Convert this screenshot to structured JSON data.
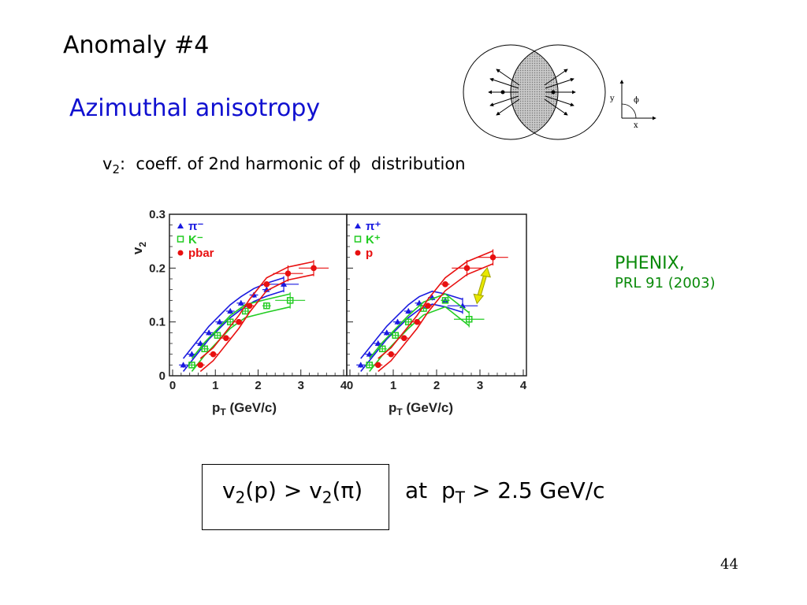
{
  "slide": {
    "title": "Anomaly #4",
    "subtitle": "Azimuthal anisotropy",
    "v2_def": {
      "v": "v",
      "sub": "2",
      "rest": ":  coeff. of 2nd harmonic of ",
      "phi": "ϕ",
      "tail": "  distribution"
    },
    "phenix_name": "PHENIX,",
    "phenix_ref": "PRL 91 (2003)",
    "result": {
      "v1": "v",
      "s1": "2",
      "mid": "(p) > v",
      "s2": "2",
      "end": "(π)"
    },
    "condition": {
      "pre": "at  p",
      "sub": "T",
      "post": " > 2.5 GeV/c"
    },
    "page_number": "44"
  },
  "figure": {
    "y_label": "y",
    "x_label": "x",
    "phi_label": "ϕ"
  },
  "colors": {
    "title_blue": "#1010d0",
    "phenix_green": "#0a8a0a",
    "pion": "#1a1ae0",
    "kaon": "#22cc22",
    "proton": "#e81010",
    "arrow": "#e8e800"
  },
  "chart_data": [
    {
      "type": "line",
      "panel": "left",
      "ylabel": "v2",
      "ylabel_sub": "2",
      "ylabel_main": "v",
      "xlabel_main": "p",
      "xlabel_sub": "T",
      "xlabel_unit": " (GeV/c)",
      "xlim": [
        0,
        4
      ],
      "ylim": [
        0,
        0.3
      ],
      "x_ticks": [
        "0",
        "1",
        "2",
        "3",
        "4"
      ],
      "y_ticks": [
        "0",
        "0.1",
        "0.2",
        "0.3"
      ],
      "legend_placement": "top-left",
      "series": [
        {
          "name": "π⁻",
          "color": "#1a1ae0",
          "marker": "triangle",
          "x": [
            0.25,
            0.45,
            0.65,
            0.85,
            1.1,
            1.35,
            1.6,
            1.9,
            2.2,
            2.6
          ],
          "y": [
            0.02,
            0.04,
            0.06,
            0.08,
            0.1,
            0.12,
            0.135,
            0.15,
            0.16,
            0.17
          ]
        },
        {
          "name": "K⁻",
          "color": "#22cc22",
          "marker": "open-square",
          "x": [
            0.45,
            0.75,
            1.05,
            1.35,
            1.7,
            2.2,
            2.75
          ],
          "y": [
            0.02,
            0.05,
            0.075,
            0.1,
            0.12,
            0.13,
            0.14
          ]
        },
        {
          "name": "pbar",
          "color": "#e81010",
          "marker": "circle",
          "x": [
            0.65,
            0.95,
            1.25,
            1.55,
            1.8,
            2.2,
            2.7,
            3.3
          ],
          "y": [
            0.02,
            0.04,
            0.07,
            0.1,
            0.13,
            0.17,
            0.19,
            0.2
          ]
        }
      ]
    },
    {
      "type": "line",
      "panel": "right",
      "xlabel_main": "p",
      "xlabel_sub": "T",
      "xlabel_unit": " (GeV/c)",
      "xlim": [
        0,
        4
      ],
      "ylim": [
        0,
        0.3
      ],
      "x_ticks": [
        "0",
        "1",
        "2",
        "3",
        "4"
      ],
      "legend_placement": "top-left",
      "series": [
        {
          "name": "π⁺",
          "color": "#1a1ae0",
          "marker": "triangle",
          "x": [
            0.25,
            0.45,
            0.65,
            0.85,
            1.1,
            1.35,
            1.6,
            1.9,
            2.2,
            2.6
          ],
          "y": [
            0.02,
            0.04,
            0.06,
            0.08,
            0.1,
            0.12,
            0.135,
            0.145,
            0.14,
            0.13
          ]
        },
        {
          "name": "K⁺",
          "color": "#22cc22",
          "marker": "open-square",
          "x": [
            0.45,
            0.75,
            1.05,
            1.35,
            1.7,
            2.2,
            2.75
          ],
          "y": [
            0.02,
            0.05,
            0.075,
            0.1,
            0.125,
            0.14,
            0.105
          ]
        },
        {
          "name": "p",
          "color": "#e81010",
          "marker": "circle",
          "x": [
            0.65,
            0.95,
            1.25,
            1.55,
            1.8,
            2.2,
            2.7,
            3.3
          ],
          "y": [
            0.02,
            0.04,
            0.07,
            0.1,
            0.13,
            0.17,
            0.2,
            0.22
          ]
        }
      ]
    }
  ]
}
